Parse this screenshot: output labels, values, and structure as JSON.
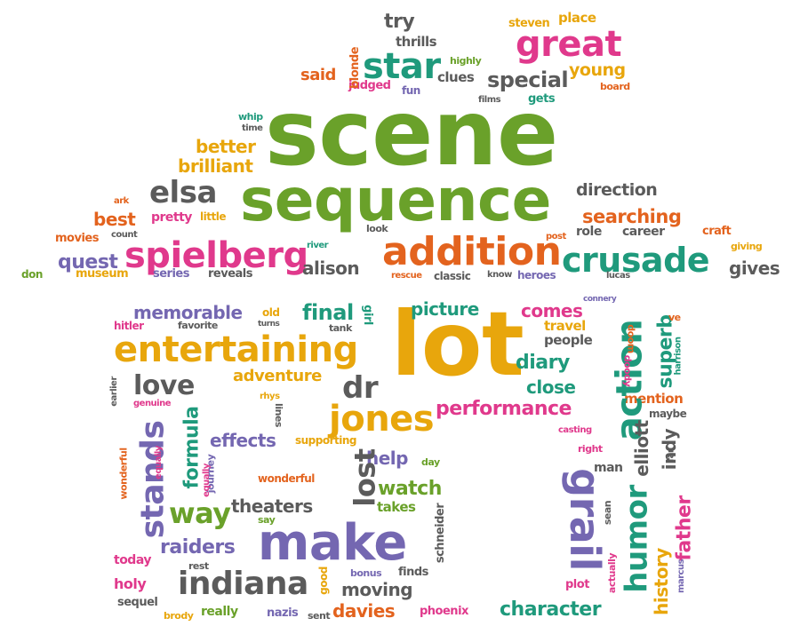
{
  "colors": {
    "green": "#6aa12a",
    "orange": "#e3631e",
    "gold": "#e8a60c",
    "purple": "#7467b1",
    "pink": "#e0398c",
    "teal": "#1f9a7c",
    "gray": "#5b5b5b"
  },
  "words": [
    {
      "t": "scene",
      "c": "green"
    },
    {
      "t": "sequence",
      "c": "green"
    },
    {
      "t": "lot",
      "c": "gold"
    },
    {
      "t": "make",
      "c": "purple"
    },
    {
      "t": "entertaining",
      "c": "gold"
    },
    {
      "t": "addition",
      "c": "orange"
    },
    {
      "t": "spielberg",
      "c": "pink"
    },
    {
      "t": "crusade",
      "c": "teal"
    },
    {
      "t": "great",
      "c": "pink"
    },
    {
      "t": "star",
      "c": "teal"
    },
    {
      "t": "grail",
      "c": "purple"
    },
    {
      "t": "action",
      "c": "teal"
    },
    {
      "t": "jones",
      "c": "gold"
    },
    {
      "t": "indiana",
      "c": "gray"
    },
    {
      "t": "stands",
      "c": "purple"
    },
    {
      "t": "elsa",
      "c": "gray"
    },
    {
      "t": "humor",
      "c": "teal"
    },
    {
      "t": "way",
      "c": "green"
    },
    {
      "t": "love",
      "c": "gray"
    },
    {
      "t": "dr",
      "c": "gray"
    },
    {
      "t": "lost",
      "c": "gray"
    },
    {
      "t": "performance",
      "c": "pink"
    },
    {
      "t": "special",
      "c": "gray"
    },
    {
      "t": "searching",
      "c": "orange"
    },
    {
      "t": "quest",
      "c": "purple"
    },
    {
      "t": "alison",
      "c": "gray"
    },
    {
      "t": "memorable",
      "c": "purple"
    },
    {
      "t": "final",
      "c": "teal"
    },
    {
      "t": "picture",
      "c": "teal"
    },
    {
      "t": "comes",
      "c": "pink"
    },
    {
      "t": "diary",
      "c": "teal"
    },
    {
      "t": "close",
      "c": "teal"
    },
    {
      "t": "best",
      "c": "orange"
    },
    {
      "t": "better",
      "c": "gold"
    },
    {
      "t": "brilliant",
      "c": "gold"
    },
    {
      "t": "direction",
      "c": "gray"
    },
    {
      "t": "young",
      "c": "gold"
    },
    {
      "t": "said",
      "c": "orange"
    },
    {
      "t": "try",
      "c": "gray"
    },
    {
      "t": "thrills",
      "c": "gray"
    },
    {
      "t": "clues",
      "c": "gray"
    },
    {
      "t": "steven",
      "c": "gold"
    },
    {
      "t": "place",
      "c": "gold"
    },
    {
      "t": "gives",
      "c": "gray"
    },
    {
      "t": "adventure",
      "c": "gold"
    },
    {
      "t": "effects",
      "c": "purple"
    },
    {
      "t": "formula",
      "c": "teal"
    },
    {
      "t": "theaters",
      "c": "gray"
    },
    {
      "t": "help",
      "c": "purple"
    },
    {
      "t": "watch",
      "c": "green"
    },
    {
      "t": "takes",
      "c": "green"
    },
    {
      "t": "raiders",
      "c": "purple"
    },
    {
      "t": "moving",
      "c": "gray"
    },
    {
      "t": "davies",
      "c": "orange"
    },
    {
      "t": "character",
      "c": "teal"
    },
    {
      "t": "father",
      "c": "pink"
    },
    {
      "t": "superb",
      "c": "teal"
    },
    {
      "t": "elliott",
      "c": "gray"
    },
    {
      "t": "indy",
      "c": "gray"
    },
    {
      "t": "history",
      "c": "gold"
    },
    {
      "t": "mention",
      "c": "orange"
    },
    {
      "t": "travel",
      "c": "gold"
    },
    {
      "t": "people",
      "c": "gray"
    },
    {
      "t": "holy",
      "c": "pink"
    },
    {
      "t": "today",
      "c": "pink"
    },
    {
      "t": "sequel",
      "c": "gray"
    },
    {
      "t": "really",
      "c": "green"
    },
    {
      "t": "nazis",
      "c": "purple"
    },
    {
      "t": "phoenix",
      "c": "pink"
    },
    {
      "t": "plot",
      "c": "pink"
    },
    {
      "t": "pretty",
      "c": "pink"
    },
    {
      "t": "little",
      "c": "gold"
    },
    {
      "t": "movies",
      "c": "orange"
    },
    {
      "t": "count",
      "c": "gray"
    },
    {
      "t": "museum",
      "c": "gold"
    },
    {
      "t": "series",
      "c": "purple"
    },
    {
      "t": "reveals",
      "c": "gray"
    },
    {
      "t": "don",
      "c": "green"
    },
    {
      "t": "rescue",
      "c": "orange"
    },
    {
      "t": "classic",
      "c": "gray"
    },
    {
      "t": "know",
      "c": "gray"
    },
    {
      "t": "heroes",
      "c": "purple"
    },
    {
      "t": "lucas",
      "c": "gray"
    },
    {
      "t": "role",
      "c": "gray"
    },
    {
      "t": "career",
      "c": "gray"
    },
    {
      "t": "craft",
      "c": "orange"
    },
    {
      "t": "giving",
      "c": "gold"
    },
    {
      "t": "post",
      "c": "orange"
    },
    {
      "t": "look",
      "c": "gray"
    },
    {
      "t": "river",
      "c": "teal"
    },
    {
      "t": "ark",
      "c": "orange"
    },
    {
      "t": "whip",
      "c": "teal"
    },
    {
      "t": "time",
      "c": "gray"
    },
    {
      "t": "judged",
      "c": "pink"
    },
    {
      "t": "fun",
      "c": "purple"
    },
    {
      "t": "highly",
      "c": "green"
    },
    {
      "t": "films",
      "c": "gray"
    },
    {
      "t": "gets",
      "c": "teal"
    },
    {
      "t": "board",
      "c": "orange"
    },
    {
      "t": "blonde",
      "c": "orange"
    },
    {
      "t": "old",
      "c": "gold"
    },
    {
      "t": "girl",
      "c": "teal"
    },
    {
      "t": "tank",
      "c": "gray"
    },
    {
      "t": "turns",
      "c": "gray"
    },
    {
      "t": "favorite",
      "c": "gray"
    },
    {
      "t": "hitler",
      "c": "pink"
    },
    {
      "t": "connery",
      "c": "purple"
    },
    {
      "t": "doom",
      "c": "orange"
    },
    {
      "t": "doody",
      "c": "pink"
    },
    {
      "t": "ve",
      "c": "orange"
    },
    {
      "t": "harrison",
      "c": "teal"
    },
    {
      "t": "story",
      "c": "orange"
    },
    {
      "t": "maybe",
      "c": "gray"
    },
    {
      "t": "earlier",
      "c": "gray"
    },
    {
      "t": "genuine",
      "c": "pink"
    },
    {
      "t": "rhys",
      "c": "gold"
    },
    {
      "t": "lines",
      "c": "gray"
    },
    {
      "t": "supporting",
      "c": "gold"
    },
    {
      "t": "journey",
      "c": "purple"
    },
    {
      "t": "equally",
      "c": "pink"
    },
    {
      "t": "wonderful",
      "c": "orange"
    },
    {
      "t": "say",
      "c": "green"
    },
    {
      "t": "day",
      "c": "green"
    },
    {
      "t": "schneider",
      "c": "gray"
    },
    {
      "t": "casting",
      "c": "pink"
    },
    {
      "t": "right",
      "c": "pink"
    },
    {
      "t": "man",
      "c": "gray"
    },
    {
      "t": "far",
      "c": "gray"
    },
    {
      "t": "sean",
      "c": "gray"
    },
    {
      "t": "sallah",
      "c": "gold"
    },
    {
      "t": "rest",
      "c": "gray"
    },
    {
      "t": "bonus",
      "c": "purple"
    },
    {
      "t": "finds",
      "c": "gray"
    },
    {
      "t": "good",
      "c": "gold"
    },
    {
      "t": "brody",
      "c": "gold"
    },
    {
      "t": "sent",
      "c": "gray"
    },
    {
      "t": "actually",
      "c": "pink"
    },
    {
      "t": "marcus",
      "c": "purple"
    },
    {
      "t": "funnier",
      "c": "purple"
    }
  ]
}
